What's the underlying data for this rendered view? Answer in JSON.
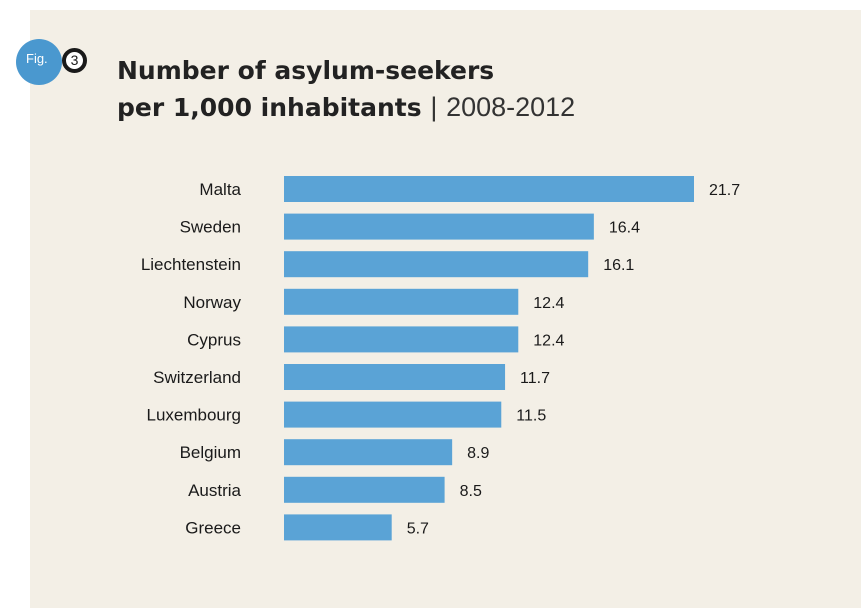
{
  "figure": {
    "badge": "Fig.",
    "number": "3"
  },
  "title": {
    "line1": "Number of asylum-seekers",
    "line2_bold": "per 1,000 inhabitants",
    "separator": "|",
    "years": "2008-2012"
  },
  "colors": {
    "background": "#f3efe6",
    "bar": "#5aa3d6",
    "badge": "#4a98cf"
  },
  "chart_data": {
    "type": "bar",
    "orientation": "horizontal",
    "title": "Number of asylum-seekers per 1,000 inhabitants | 2008-2012",
    "categories": [
      "Malta",
      "Sweden",
      "Liechtenstein",
      "Norway",
      "Cyprus",
      "Switzerland",
      "Luxembourg",
      "Belgium",
      "Austria",
      "Greece"
    ],
    "values": [
      21.7,
      16.4,
      16.1,
      12.4,
      12.4,
      11.7,
      11.5,
      8.9,
      8.5,
      5.7
    ],
    "value_labels": [
      "21.7",
      "16.4",
      "16.1",
      "12.4",
      "12.4",
      "11.7",
      "11.5",
      "8.9",
      "8.5",
      "5.7"
    ],
    "xlim": [
      0,
      21.7
    ],
    "grid": false,
    "legend": "none"
  }
}
